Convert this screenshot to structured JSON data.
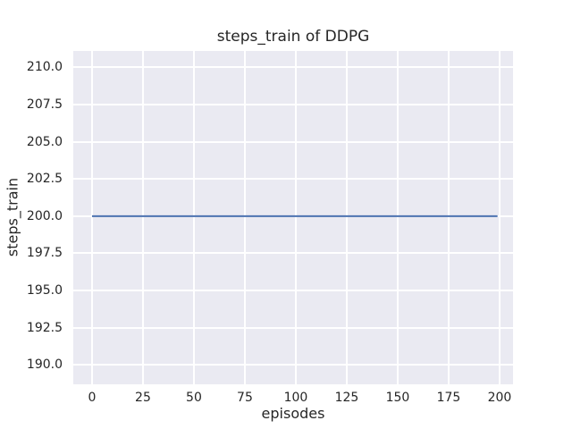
{
  "chart_data": {
    "type": "line",
    "title": "steps_train of DDPG",
    "xlabel": "episodes",
    "ylabel": "steps_train",
    "xlim": [
      -9.2,
      206.6
    ],
    "ylim": [
      188.7,
      211.1
    ],
    "xticks": [
      0,
      25,
      50,
      75,
      100,
      125,
      150,
      175,
      200
    ],
    "xtick_labels": [
      "0",
      "25",
      "50",
      "75",
      "100",
      "125",
      "150",
      "175",
      "200"
    ],
    "yticks": [
      190.0,
      192.5,
      195.0,
      197.5,
      200.0,
      202.5,
      205.0,
      207.5,
      210.0
    ],
    "ytick_labels": [
      "190.0",
      "192.5",
      "195.0",
      "197.5",
      "200.0",
      "202.5",
      "205.0",
      "207.5",
      "210.0"
    ],
    "grid": true,
    "legend": "none",
    "series": [
      {
        "name": "steps_train",
        "color": "#4c72b0",
        "line_width": 2,
        "x": [
          0,
          199
        ],
        "y": [
          200,
          200
        ]
      }
    ],
    "colors": {
      "figure_background": "#ffffff",
      "plot_background": "#eaeaf2",
      "grid_color": "#ffffff",
      "text_color": "#262626"
    }
  }
}
